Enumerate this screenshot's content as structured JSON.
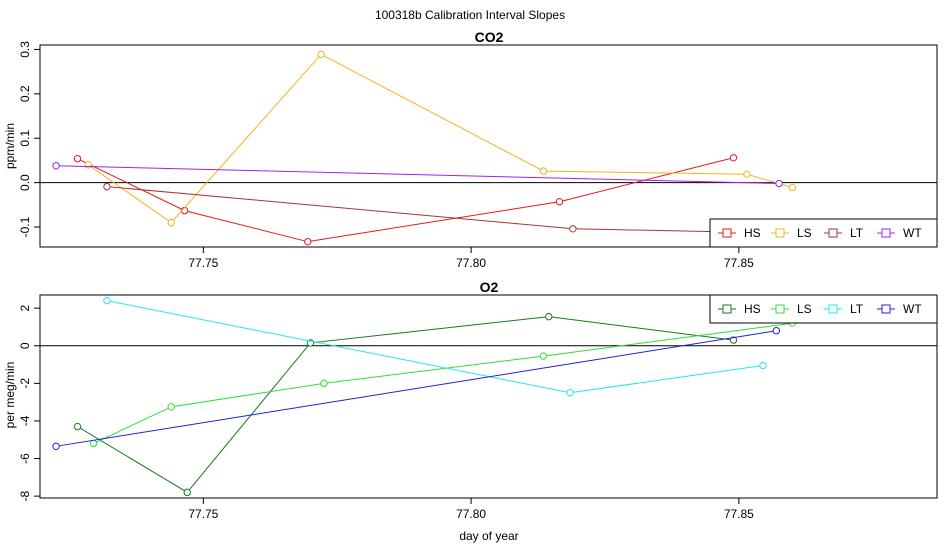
{
  "figure": {
    "title": "100318b   Calibration Interval Slopes"
  },
  "chart_data": [
    {
      "type": "line",
      "title": "CO2",
      "xlabel": "",
      "ylabel": "ppm/min",
      "xlim": [
        77.7195,
        77.887
      ],
      "ylim": [
        -0.145,
        0.31
      ],
      "x_ticks": [
        77.75,
        77.8,
        77.85
      ],
      "x_tick_labels": [
        "77.75",
        "77.80",
        "77.85"
      ],
      "y_ticks": [
        -0.1,
        0.0,
        0.1,
        0.2,
        0.3
      ],
      "y_tick_labels": [
        "-0.1",
        "0.0",
        "0.1",
        "0.2",
        "0.3"
      ],
      "zero_line": true,
      "grid": false,
      "legend_position": "bottom-right",
      "series": [
        {
          "name": "HS",
          "color": "#e8191c",
          "x": [
            77.7265,
            77.7465,
            77.7695,
            77.8165,
            77.849
          ],
          "y": [
            0.054,
            -0.063,
            -0.133,
            -0.043,
            0.056
          ]
        },
        {
          "name": "LS",
          "color": "#f5b21c",
          "x": [
            77.7285,
            77.744,
            77.772,
            77.8135,
            77.8515,
            77.86
          ],
          "y": [
            0.04,
            -0.09,
            0.289,
            0.026,
            0.019,
            -0.011
          ]
        },
        {
          "name": "LT",
          "color": "#a83434",
          "x": [
            77.732,
            77.819,
            77.856
          ],
          "y": [
            -0.009,
            -0.104,
            -0.113
          ]
        },
        {
          "name": "WT",
          "color": "#a020f0",
          "x": [
            77.7225,
            77.8575
          ],
          "y": [
            0.038,
            -0.002
          ]
        }
      ]
    },
    {
      "type": "line",
      "title": "O2",
      "xlabel": "day of year",
      "ylabel": "per meg/min",
      "xlim": [
        77.7195,
        77.887
      ],
      "ylim": [
        -8.1,
        2.7
      ],
      "x_ticks": [
        77.75,
        77.8,
        77.85
      ],
      "x_tick_labels": [
        "77.75",
        "77.80",
        "77.85"
      ],
      "y_ticks": [
        -8,
        -6,
        -4,
        -2,
        0,
        2
      ],
      "y_tick_labels": [
        "-8",
        "-6",
        "-4",
        "-2",
        "0",
        "2"
      ],
      "zero_line": true,
      "grid": false,
      "legend_position": "top-right",
      "series": [
        {
          "name": "HS",
          "color": "#1a7a1a",
          "x": [
            77.7265,
            77.747,
            77.77,
            77.8145,
            77.849
          ],
          "y": [
            -4.3,
            -7.8,
            0.15,
            1.55,
            0.3
          ]
        },
        {
          "name": "LS",
          "color": "#33dd33",
          "x": [
            77.7295,
            77.744,
            77.7725,
            77.8135,
            77.86
          ],
          "y": [
            -5.2,
            -3.25,
            -2.0,
            -0.55,
            1.2
          ]
        },
        {
          "name": "LT",
          "color": "#22e8e8",
          "x": [
            77.732,
            77.8185,
            77.8545
          ],
          "y": [
            2.4,
            -2.5,
            -1.05
          ]
        },
        {
          "name": "WT",
          "color": "#2020dd",
          "x": [
            77.7225,
            77.857
          ],
          "y": [
            -5.35,
            0.8
          ]
        }
      ]
    }
  ]
}
